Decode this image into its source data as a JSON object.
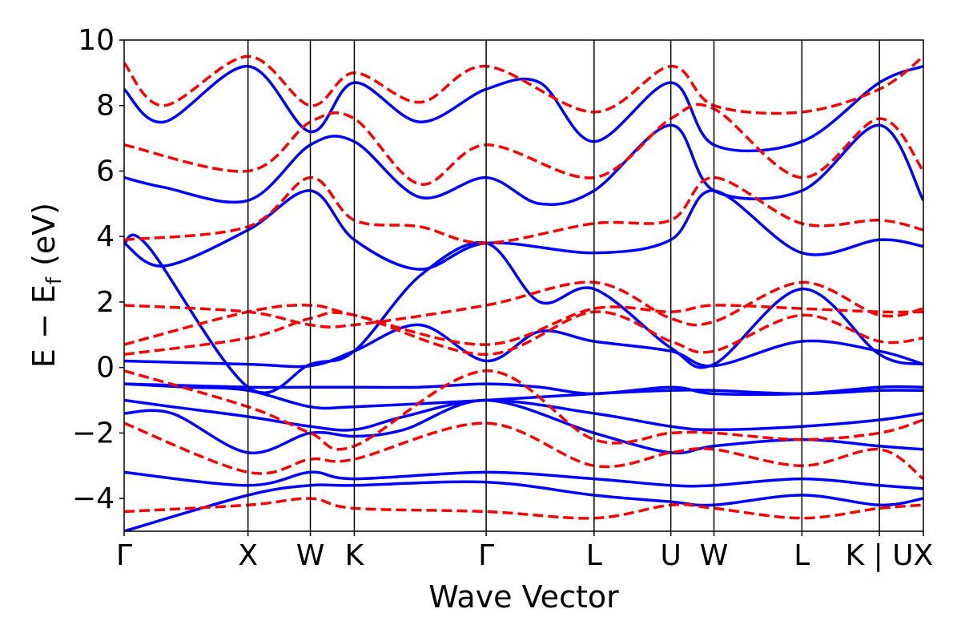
{
  "chart_data": {
    "type": "line",
    "title": "",
    "xlabel": "Wave Vector",
    "ylabel": {
      "main": "E − E",
      "subscript": "f",
      "unit": "(eV)"
    },
    "ylim": [
      -5,
      10
    ],
    "yticks": [
      -4,
      -2,
      0,
      2,
      4,
      6,
      8,
      10
    ],
    "ytick_labels": [
      "−4",
      "−2",
      "0",
      "2",
      "4",
      "6",
      "8",
      "10"
    ],
    "x_range": [
      0,
      1
    ],
    "high_symmetry_points": [
      {
        "label": "Γ",
        "x": 0.0
      },
      {
        "label": "X",
        "x": 0.155
      },
      {
        "label": "W",
        "x": 0.233
      },
      {
        "label": "K",
        "x": 0.288
      },
      {
        "label": "Γ",
        "x": 0.453
      },
      {
        "label": "L",
        "x": 0.588
      },
      {
        "label": "U",
        "x": 0.684
      },
      {
        "label": "W",
        "x": 0.738
      },
      {
        "label": "L",
        "x": 0.848
      },
      {
        "label": "K | U",
        "x": 0.945
      },
      {
        "label": "X",
        "x": 1.0
      }
    ],
    "grid": false,
    "legend": "none",
    "colors": {
      "series_a": "#0000ff",
      "series_b": "#ff0000",
      "axes": "#000000"
    },
    "series": [
      {
        "style": "solid",
        "color": "#0000ff",
        "bands": [
          {
            "x": [
              0,
              0.155,
              0.233,
              0.288,
              0.453,
              0.588,
              0.684,
              0.738,
              0.848,
              0.945,
              1.0
            ],
            "y": [
              -5.0,
              -3.9,
              -3.6,
              -3.6,
              -3.5,
              -3.9,
              -4.1,
              -4.2,
              -3.9,
              -4.2,
              -4.0
            ]
          },
          {
            "x": [
              0,
              0.155,
              0.233,
              0.288,
              0.453,
              0.588,
              0.684,
              0.738,
              0.848,
              0.945,
              1.0
            ],
            "y": [
              -3.2,
              -3.6,
              -3.2,
              -3.4,
              -3.2,
              -3.4,
              -3.6,
              -3.6,
              -3.4,
              -3.6,
              -3.7
            ]
          },
          {
            "x": [
              0,
              0.06,
              0.155,
              0.233,
              0.288,
              0.35,
              0.453,
              0.588,
              0.684,
              0.738,
              0.848,
              0.945,
              1.0
            ],
            "y": [
              -1.4,
              -1.4,
              -2.6,
              -2.0,
              -2.1,
              -1.9,
              -1.0,
              -2.0,
              -2.6,
              -2.4,
              -2.2,
              -2.4,
              -2.5
            ]
          },
          {
            "x": [
              0,
              0.06,
              0.155,
              0.233,
              0.288,
              0.35,
              0.453,
              0.588,
              0.684,
              0.738,
              0.848,
              0.945,
              1.0
            ],
            "y": [
              -1.0,
              -1.2,
              -1.5,
              -1.8,
              -1.9,
              -1.5,
              -1.0,
              -1.4,
              -1.8,
              -1.9,
              -1.8,
              -1.6,
              -1.4
            ]
          },
          {
            "x": [
              0,
              0.155,
              0.233,
              0.288,
              0.37,
              0.453,
              0.52,
              0.588,
              0.684,
              0.738,
              0.848,
              0.945,
              1.0
            ],
            "y": [
              -0.5,
              -0.6,
              -0.6,
              -0.6,
              -0.6,
              -0.5,
              -0.6,
              -0.8,
              -0.6,
              -0.8,
              -0.8,
              -0.6,
              -0.6
            ]
          },
          {
            "x": [
              0,
              0.08,
              0.155,
              0.233,
              0.288,
              0.453,
              0.588,
              0.684,
              0.738,
              0.848,
              0.945,
              1.0
            ],
            "y": [
              -0.5,
              -0.6,
              -0.7,
              -1.2,
              -1.2,
              -1.0,
              -0.8,
              -0.7,
              -0.7,
              -0.8,
              -0.7,
              -0.7
            ]
          },
          {
            "x": [
              0,
              0.155,
              0.233,
              0.288,
              0.37,
              0.453,
              0.52,
              0.588,
              0.684,
              0.738,
              0.848,
              0.945,
              1.0
            ],
            "y": [
              0.2,
              0.1,
              0.05,
              0.5,
              1.3,
              0.2,
              1.1,
              0.8,
              0.5,
              0.05,
              0.8,
              0.5,
              0.1
            ]
          },
          {
            "x": [
              0,
              0.03,
              0.155,
              0.233,
              0.288,
              0.37,
              0.453,
              0.52,
              0.588,
              0.684,
              0.738,
              0.848,
              0.945,
              1.0
            ],
            "y": [
              3.8,
              3.7,
              -0.6,
              0.1,
              0.5,
              2.8,
              3.8,
              2.0,
              2.4,
              0.6,
              0.1,
              2.4,
              0.4,
              0.1
            ]
          },
          {
            "x": [
              0,
              0.05,
              0.155,
              0.233,
              0.288,
              0.37,
              0.453,
              0.588,
              0.684,
              0.738,
              0.848,
              0.945,
              1.0
            ],
            "y": [
              3.8,
              3.1,
              4.2,
              5.4,
              3.9,
              3.0,
              3.8,
              3.5,
              3.9,
              5.4,
              3.5,
              3.9,
              3.7
            ]
          },
          {
            "x": [
              0,
              0.05,
              0.155,
              0.233,
              0.288,
              0.37,
              0.453,
              0.52,
              0.588,
              0.684,
              0.738,
              0.848,
              0.945,
              1.0
            ],
            "y": [
              5.8,
              5.5,
              5.1,
              6.8,
              6.9,
              5.2,
              5.8,
              5.0,
              5.4,
              7.4,
              5.4,
              5.4,
              7.4,
              5.1
            ]
          },
          {
            "x": [
              0,
              0.05,
              0.155,
              0.233,
              0.288,
              0.37,
              0.453,
              0.52,
              0.588,
              0.684,
              0.738,
              0.848,
              0.945,
              1.0
            ],
            "y": [
              8.5,
              7.5,
              9.2,
              7.2,
              8.7,
              7.5,
              8.5,
              8.7,
              6.9,
              8.7,
              6.8,
              6.9,
              8.7,
              9.2
            ]
          }
        ]
      },
      {
        "style": "dashed",
        "color": "#ff0000",
        "bands": [
          {
            "x": [
              0,
              0.155,
              0.233,
              0.288,
              0.453,
              0.588,
              0.684,
              0.738,
              0.848,
              0.945,
              1.0
            ],
            "y": [
              -4.4,
              -4.2,
              -4.0,
              -4.3,
              -4.4,
              -4.6,
              -4.2,
              -4.3,
              -4.6,
              -4.3,
              -4.2
            ]
          },
          {
            "x": [
              0,
              0.155,
              0.233,
              0.288,
              0.453,
              0.588,
              0.684,
              0.738,
              0.848,
              0.945,
              1.0
            ],
            "y": [
              -1.7,
              -3.2,
              -2.8,
              -2.8,
              -1.7,
              -3.0,
              -2.6,
              -2.5,
              -3.0,
              -2.5,
              -3.4
            ]
          },
          {
            "x": [
              0,
              0.155,
              0.233,
              0.288,
              0.453,
              0.588,
              0.684,
              0.738,
              0.848,
              0.945,
              1.0
            ],
            "y": [
              -0.1,
              -1.2,
              -2.0,
              -2.4,
              -0.1,
              -2.2,
              -2.0,
              -2.0,
              -2.2,
              -2.0,
              -1.6
            ]
          },
          {
            "x": [
              0,
              0.155,
              0.233,
              0.288,
              0.453,
              0.588,
              0.684,
              0.738,
              0.848,
              0.945,
              1.0
            ],
            "y": [
              0.4,
              0.9,
              1.5,
              1.6,
              0.4,
              1.7,
              0.8,
              0.5,
              1.6,
              0.8,
              0.9
            ]
          },
          {
            "x": [
              0,
              0.155,
              0.233,
              0.288,
              0.453,
              0.588,
              0.684,
              0.738,
              0.848,
              0.945,
              1.0
            ],
            "y": [
              0.7,
              1.7,
              1.9,
              1.6,
              0.7,
              1.8,
              1.7,
              1.9,
              1.8,
              1.7,
              1.7
            ]
          },
          {
            "x": [
              0,
              0.155,
              0.233,
              0.288,
              0.453,
              0.588,
              0.684,
              0.738,
              0.848,
              0.945,
              1.0
            ],
            "y": [
              1.9,
              1.7,
              1.3,
              1.3,
              1.9,
              2.6,
              1.5,
              1.4,
              2.6,
              1.6,
              1.8
            ]
          },
          {
            "x": [
              0,
              0.155,
              0.233,
              0.288,
              0.37,
              0.453,
              0.588,
              0.684,
              0.738,
              0.848,
              0.945,
              1.0
            ],
            "y": [
              3.9,
              4.3,
              5.8,
              4.5,
              4.3,
              3.8,
              4.4,
              4.5,
              5.8,
              4.4,
              4.5,
              4.2
            ]
          },
          {
            "x": [
              0,
              0.155,
              0.233,
              0.288,
              0.37,
              0.453,
              0.588,
              0.684,
              0.738,
              0.848,
              0.945,
              1.0
            ],
            "y": [
              6.8,
              6.0,
              7.5,
              7.6,
              5.6,
              6.8,
              5.8,
              7.6,
              7.9,
              5.8,
              7.6,
              6.0
            ]
          },
          {
            "x": [
              0,
              0.05,
              0.155,
              0.233,
              0.288,
              0.37,
              0.453,
              0.588,
              0.684,
              0.738,
              0.848,
              0.945,
              1.0
            ],
            "y": [
              9.3,
              8.0,
              9.5,
              8.0,
              9.0,
              8.1,
              9.2,
              7.8,
              9.2,
              8.0,
              7.8,
              8.5,
              9.5
            ]
          }
        ]
      }
    ]
  }
}
